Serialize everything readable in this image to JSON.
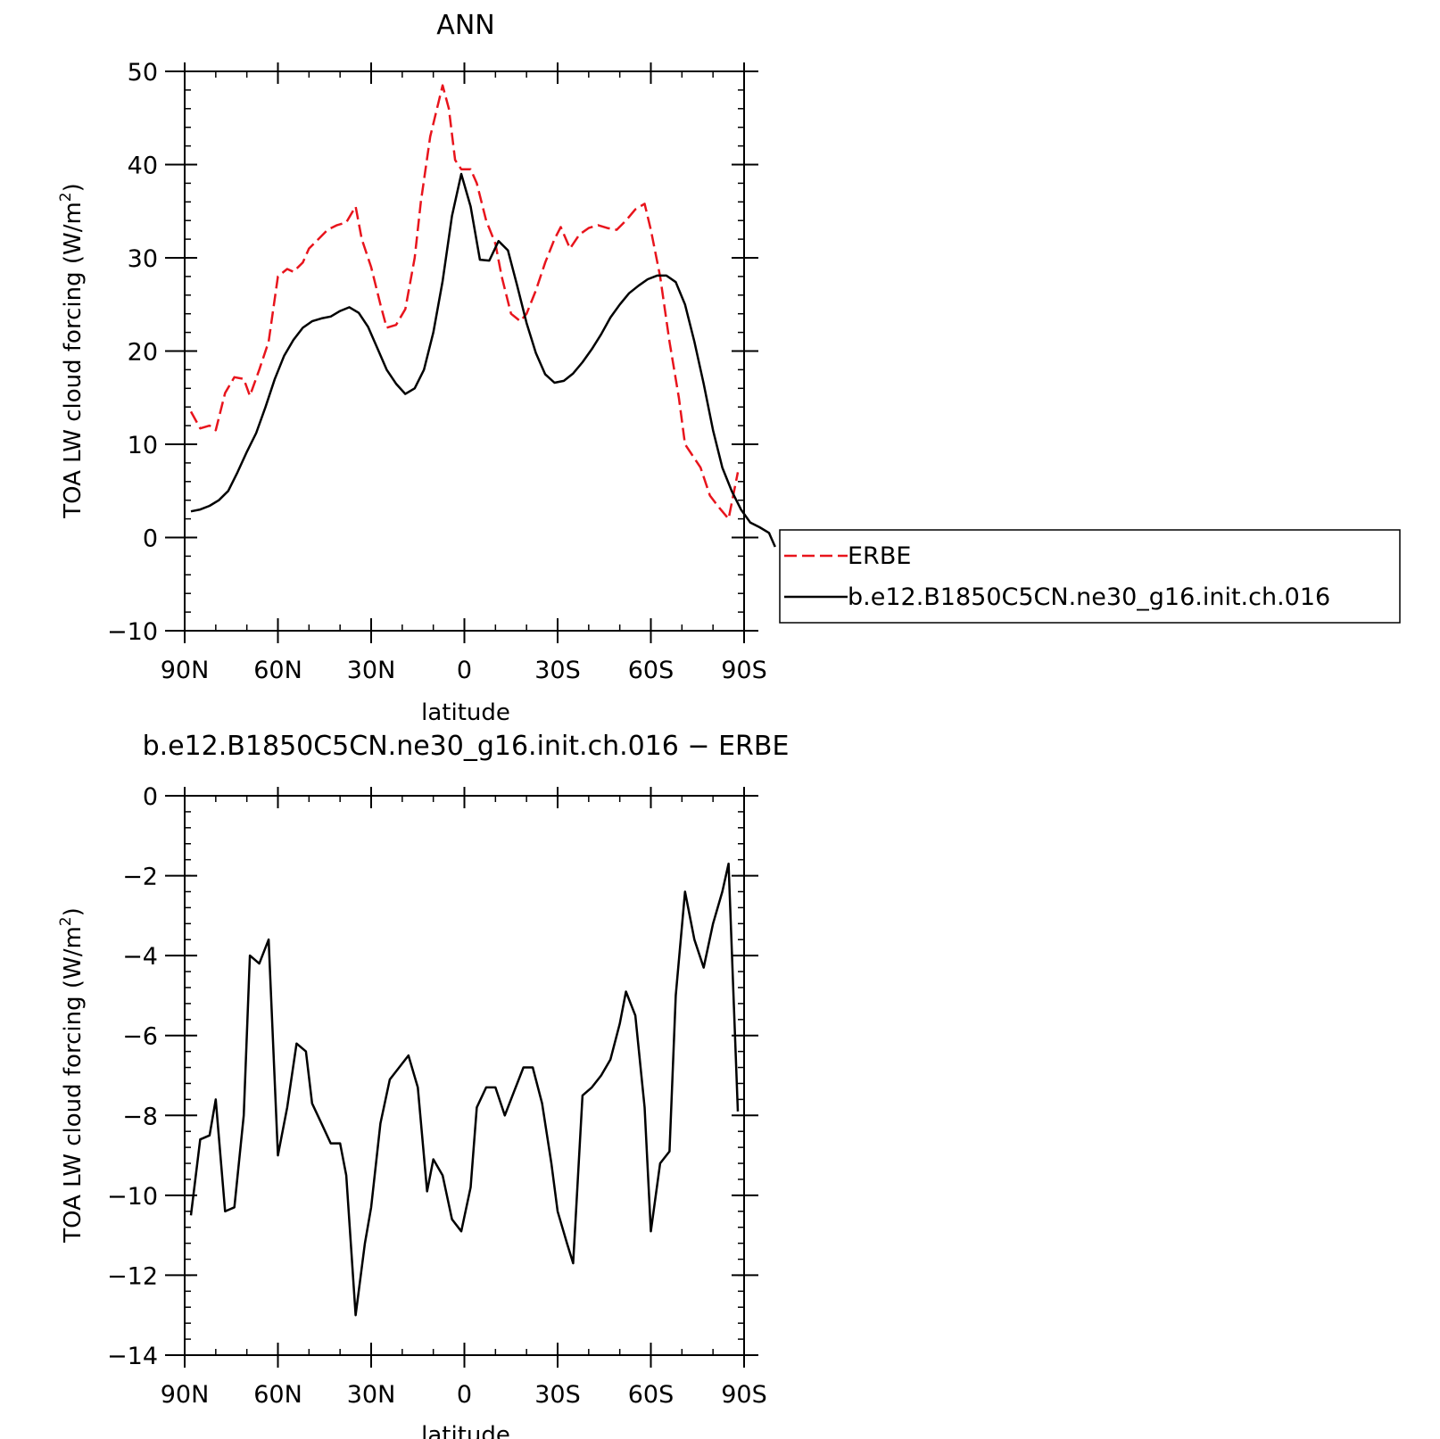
{
  "chart_data": [
    {
      "type": "line",
      "title": "ANN",
      "xlabel": "latitude",
      "ylabel": "TOA LW cloud forcing (W/m",
      "ylabel_sup": "2",
      "ylabel_close": ")",
      "xlim": [
        -90,
        90
      ],
      "ylim": [
        -10,
        50
      ],
      "x_ticks": [
        {
          "v": -90,
          "label": "90N"
        },
        {
          "v": -60,
          "label": "60N"
        },
        {
          "v": -30,
          "label": "30N"
        },
        {
          "v": 0,
          "label": "0"
        },
        {
          "v": 30,
          "label": "30S"
        },
        {
          "v": 60,
          "label": "60S"
        },
        {
          "v": 90,
          "label": "90S"
        }
      ],
      "y_ticks": [
        {
          "v": -10,
          "label": "−10"
        },
        {
          "v": 0,
          "label": "0"
        },
        {
          "v": 10,
          "label": "10"
        },
        {
          "v": 20,
          "label": "20"
        },
        {
          "v": 30,
          "label": "30"
        },
        {
          "v": 40,
          "label": "40"
        },
        {
          "v": 50,
          "label": "50"
        }
      ],
      "legend_position": "right",
      "series": [
        {
          "name": "ERBE",
          "color": "#e8141c",
          "dash": true,
          "points": [
            [
              -88,
              13.5
            ],
            [
              -85,
              11.7
            ],
            [
              -82,
              12
            ],
            [
              -80,
              11.5
            ],
            [
              -77,
              15.5
            ],
            [
              -74,
              17.2
            ],
            [
              -71,
              17
            ],
            [
              -69,
              15.2
            ],
            [
              -66,
              18
            ],
            [
              -63,
              21
            ],
            [
              -60,
              28
            ],
            [
              -57,
              28.8
            ],
            [
              -55,
              28.5
            ],
            [
              -52,
              29.5
            ],
            [
              -50,
              31
            ],
            [
              -47,
              32
            ],
            [
              -44,
              33
            ],
            [
              -41,
              33.5
            ],
            [
              -38,
              33.8
            ],
            [
              -35,
              35.5
            ],
            [
              -33,
              32
            ],
            [
              -30,
              29
            ],
            [
              -27,
              25
            ],
            [
              -25,
              22.5
            ],
            [
              -22,
              22.8
            ],
            [
              -19,
              24.5
            ],
            [
              -16,
              30
            ],
            [
              -14,
              36
            ],
            [
              -11,
              43
            ],
            [
              -7,
              48.5
            ],
            [
              -5,
              46
            ],
            [
              -3,
              40.5
            ],
            [
              -1,
              39.5
            ],
            [
              2,
              39.5
            ],
            [
              4,
              38
            ],
            [
              7,
              34
            ],
            [
              10,
              31.5
            ],
            [
              12,
              28
            ],
            [
              15,
              24
            ],
            [
              18,
              23.2
            ],
            [
              20,
              24
            ],
            [
              23,
              26.5
            ],
            [
              26,
              29.5
            ],
            [
              29,
              32
            ],
            [
              31,
              33.3
            ],
            [
              34,
              31
            ],
            [
              37,
              32.5
            ],
            [
              40,
              33.2
            ],
            [
              43,
              33.5
            ],
            [
              46,
              33.2
            ],
            [
              49,
              33
            ],
            [
              52,
              34
            ],
            [
              55,
              35.2
            ],
            [
              58,
              35.8
            ],
            [
              60,
              33
            ],
            [
              63,
              28
            ],
            [
              66,
              21
            ],
            [
              69,
              15
            ],
            [
              71,
              10
            ],
            [
              73,
              9
            ],
            [
              76,
              7.5
            ],
            [
              79,
              4.5
            ],
            [
              82,
              3.2
            ],
            [
              85,
              2
            ],
            [
              88,
              7
            ]
          ]
        },
        {
          "name": "b.e12.B1850C5CN.ne30_g16.init.ch.016",
          "color": "#000000",
          "dash": false,
          "points": [
            [
              -88,
              2.8
            ],
            [
              -85,
              3
            ],
            [
              -82,
              3.4
            ],
            [
              -79,
              4
            ],
            [
              -76,
              5
            ],
            [
              -73,
              7
            ],
            [
              -70,
              9.2
            ],
            [
              -67,
              11.2
            ],
            [
              -64,
              14
            ],
            [
              -61,
              17
            ],
            [
              -58,
              19.5
            ],
            [
              -55,
              21.2
            ],
            [
              -52,
              22.5
            ],
            [
              -49,
              23.2
            ],
            [
              -46,
              23.5
            ],
            [
              -43,
              23.7
            ],
            [
              -40,
              24.3
            ],
            [
              -37,
              24.7
            ],
            [
              -34,
              24.1
            ],
            [
              -31,
              22.6
            ],
            [
              -28,
              20.3
            ],
            [
              -25,
              18
            ],
            [
              -22,
              16.5
            ],
            [
              -19,
              15.4
            ],
            [
              -16,
              16
            ],
            [
              -13,
              18
            ],
            [
              -10,
              22
            ],
            [
              -7,
              27.5
            ],
            [
              -4,
              34.5
            ],
            [
              -1,
              39
            ],
            [
              2,
              35.5
            ],
            [
              5,
              29.8
            ],
            [
              8,
              29.7
            ],
            [
              11,
              31.8
            ],
            [
              14,
              30.8
            ],
            [
              17,
              27
            ],
            [
              20,
              23
            ],
            [
              23,
              19.8
            ],
            [
              26,
              17.5
            ],
            [
              29,
              16.6
            ],
            [
              32,
              16.8
            ],
            [
              35,
              17.6
            ],
            [
              38,
              18.8
            ],
            [
              41,
              20.2
            ],
            [
              44,
              21.8
            ],
            [
              47,
              23.6
            ],
            [
              50,
              25
            ],
            [
              53,
              26.2
            ],
            [
              56,
              27
            ],
            [
              59,
              27.7
            ],
            [
              62,
              28.1
            ],
            [
              65,
              28.1
            ],
            [
              68,
              27.4
            ],
            [
              71,
              25
            ],
            [
              74,
              21
            ],
            [
              77,
              16.5
            ],
            [
              80,
              11.5
            ],
            [
              83,
              7.5
            ],
            [
              86,
              5
            ],
            [
              89,
              3
            ],
            [
              92,
              1.6
            ],
            [
              95,
              1.1
            ],
            [
              98,
              0.5
            ],
            [
              100,
              -1
            ]
          ]
        }
      ]
    },
    {
      "type": "line",
      "title": "b.e12.B1850C5CN.ne30_g16.init.ch.016 − ERBE",
      "xlabel": "latitude",
      "ylabel": "TOA LW cloud forcing (W/m",
      "ylabel_sup": "2",
      "ylabel_close": ")",
      "xlim": [
        -90,
        90
      ],
      "ylim": [
        -14,
        0
      ],
      "x_ticks": [
        {
          "v": -90,
          "label": "90N"
        },
        {
          "v": -60,
          "label": "60N"
        },
        {
          "v": -30,
          "label": "30N"
        },
        {
          "v": 0,
          "label": "0"
        },
        {
          "v": 30,
          "label": "30S"
        },
        {
          "v": 60,
          "label": "60S"
        },
        {
          "v": 90,
          "label": "90S"
        }
      ],
      "y_ticks": [
        {
          "v": -14,
          "label": "−14"
        },
        {
          "v": -12,
          "label": "−12"
        },
        {
          "v": -10,
          "label": "−10"
        },
        {
          "v": -8,
          "label": "−8"
        },
        {
          "v": -6,
          "label": "−6"
        },
        {
          "v": -4,
          "label": "−4"
        },
        {
          "v": -2,
          "label": "−2"
        },
        {
          "v": 0,
          "label": "0"
        }
      ],
      "series": [
        {
          "color": "#000000",
          "dash": false,
          "points": [
            [
              -88,
              -10.5
            ],
            [
              -85,
              -8.6
            ],
            [
              -82,
              -8.5
            ],
            [
              -80,
              -7.6
            ],
            [
              -77,
              -10.4
            ],
            [
              -74,
              -10.3
            ],
            [
              -71,
              -8
            ],
            [
              -69,
              -4
            ],
            [
              -66,
              -4.2
            ],
            [
              -63,
              -3.6
            ],
            [
              -60,
              -9
            ],
            [
              -57,
              -7.8
            ],
            [
              -54,
              -6.2
            ],
            [
              -51,
              -6.4
            ],
            [
              -49,
              -7.7
            ],
            [
              -46,
              -8.2
            ],
            [
              -43,
              -8.7
            ],
            [
              -40,
              -8.7
            ],
            [
              -38,
              -9.5
            ],
            [
              -35,
              -13
            ],
            [
              -32,
              -11.2
            ],
            [
              -30,
              -10.3
            ],
            [
              -27,
              -8.2
            ],
            [
              -24,
              -7.1
            ],
            [
              -21,
              -6.8
            ],
            [
              -18,
              -6.5
            ],
            [
              -15,
              -7.3
            ],
            [
              -12,
              -9.9
            ],
            [
              -10,
              -9.1
            ],
            [
              -7,
              -9.5
            ],
            [
              -4,
              -10.6
            ],
            [
              -1,
              -10.9
            ],
            [
              2,
              -9.8
            ],
            [
              4,
              -7.8
            ],
            [
              7,
              -7.3
            ],
            [
              10,
              -7.3
            ],
            [
              13,
              -8
            ],
            [
              16,
              -7.4
            ],
            [
              19,
              -6.8
            ],
            [
              22,
              -6.8
            ],
            [
              25,
              -7.7
            ],
            [
              28,
              -9.2
            ],
            [
              30,
              -10.4
            ],
            [
              33,
              -11.2
            ],
            [
              35,
              -11.7
            ],
            [
              38,
              -7.5
            ],
            [
              41,
              -7.3
            ],
            [
              44,
              -7
            ],
            [
              47,
              -6.6
            ],
            [
              50,
              -5.7
            ],
            [
              52,
              -4.9
            ],
            [
              55,
              -5.5
            ],
            [
              58,
              -7.8
            ],
            [
              60,
              -10.9
            ],
            [
              63,
              -9.2
            ],
            [
              66,
              -8.9
            ],
            [
              68,
              -5
            ],
            [
              71,
              -2.4
            ],
            [
              74,
              -3.6
            ],
            [
              77,
              -4.3
            ],
            [
              80,
              -3.2
            ],
            [
              83,
              -2.4
            ],
            [
              85,
              -1.7
            ],
            [
              88,
              -7.9
            ]
          ]
        }
      ]
    }
  ]
}
